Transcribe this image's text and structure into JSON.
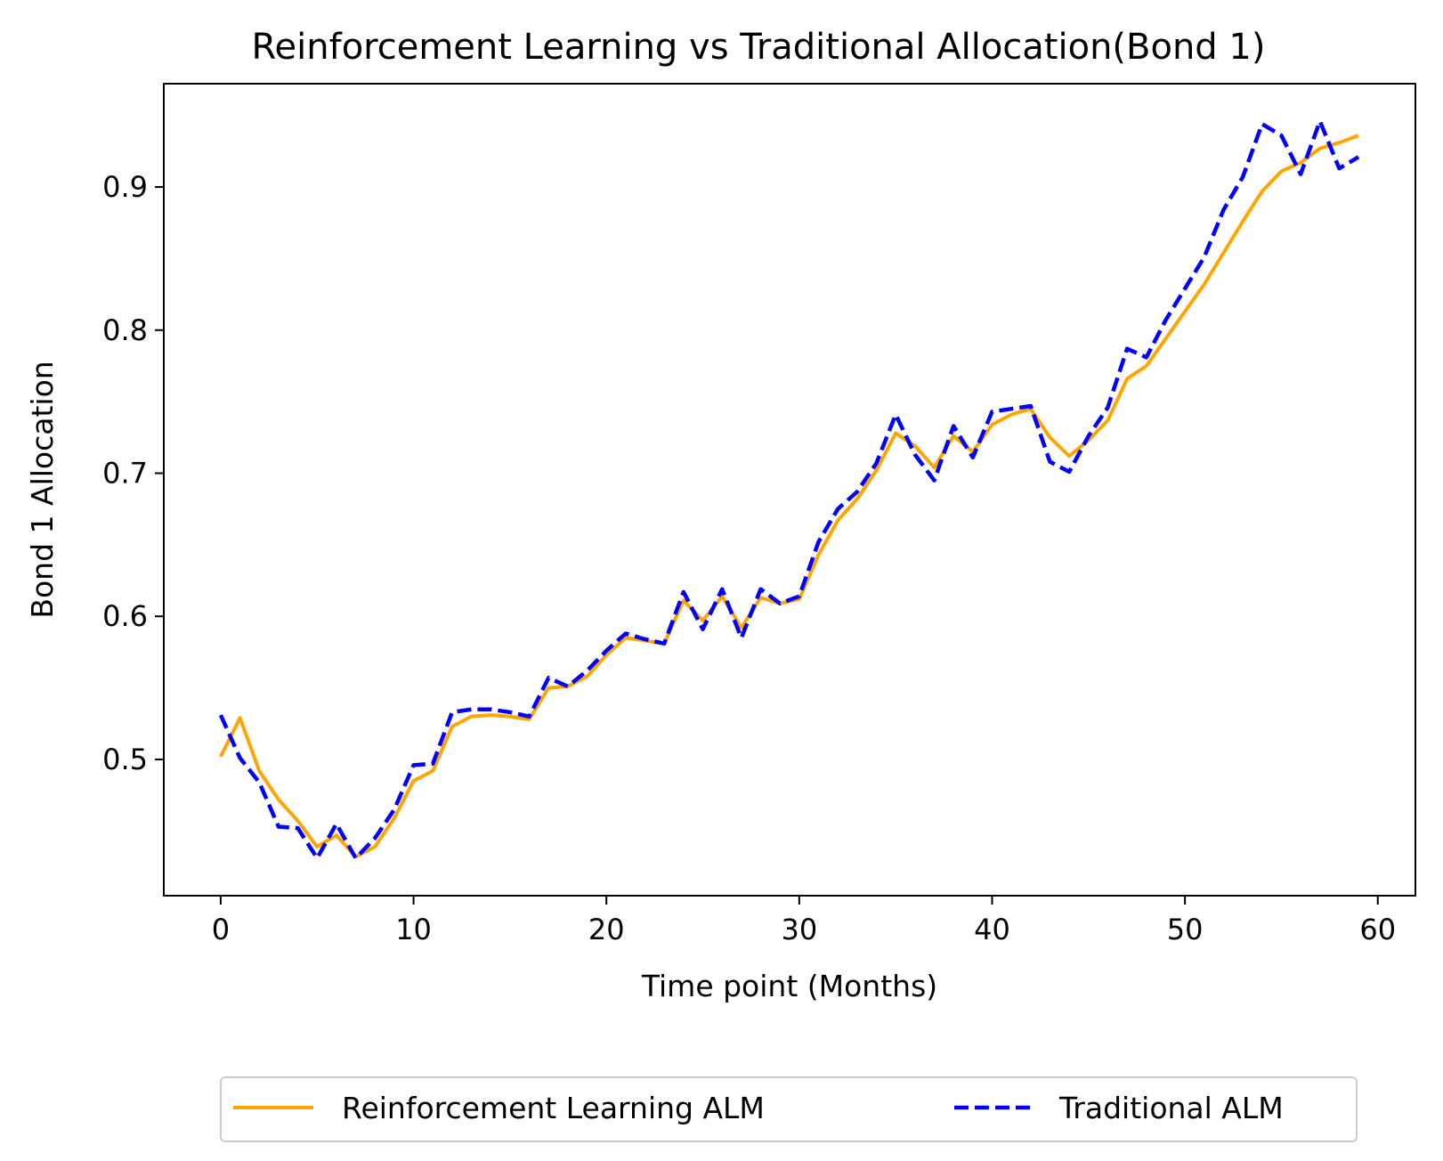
{
  "chart_data": {
    "type": "line",
    "title": "Reinforcement Learning vs Traditional Allocation(Bond 1)",
    "xlabel": "Time point (Months)",
    "ylabel": "Bond 1 Allocation",
    "xlim": [
      -2.95,
      61.95
    ],
    "ylim": [
      0.4048,
      0.9722
    ],
    "xticks": [
      0,
      10,
      20,
      30,
      40,
      50,
      60
    ],
    "xtick_labels": [
      "0",
      "10",
      "20",
      "30",
      "40",
      "50",
      "60"
    ],
    "yticks": [
      0.5,
      0.6,
      0.7,
      0.8,
      0.9
    ],
    "ytick_labels": [
      "0.5",
      "0.6",
      "0.7",
      "0.8",
      "0.9"
    ],
    "grid": false,
    "legend_position": "bottom-center",
    "x": [
      0,
      1,
      2,
      3,
      4,
      5,
      6,
      7,
      8,
      9,
      10,
      11,
      12,
      13,
      14,
      15,
      16,
      17,
      18,
      19,
      20,
      21,
      22,
      23,
      24,
      25,
      26,
      27,
      28,
      29,
      30,
      31,
      32,
      33,
      34,
      35,
      36,
      37,
      38,
      39,
      40,
      41,
      42,
      43,
      44,
      45,
      46,
      47,
      48,
      49,
      50,
      51,
      52,
      53,
      54,
      55,
      56,
      57,
      58,
      59
    ],
    "series": [
      {
        "name": "Reinforcement Learning ALM",
        "color": "#FFA500",
        "style": "solid",
        "values": [
          0.502,
          0.529,
          0.492,
          0.472,
          0.457,
          0.439,
          0.447,
          0.432,
          0.439,
          0.459,
          0.485,
          0.492,
          0.523,
          0.53,
          0.531,
          0.53,
          0.528,
          0.55,
          0.551,
          0.558,
          0.573,
          0.585,
          0.583,
          0.581,
          0.611,
          0.597,
          0.614,
          0.592,
          0.613,
          0.609,
          0.612,
          0.643,
          0.667,
          0.682,
          0.702,
          0.728,
          0.719,
          0.704,
          0.726,
          0.715,
          0.734,
          0.741,
          0.745,
          0.725,
          0.712,
          0.723,
          0.737,
          0.766,
          0.775,
          0.794,
          0.813,
          0.832,
          0.854,
          0.876,
          0.897,
          0.911,
          0.917,
          0.927,
          0.931,
          0.936
        ]
      },
      {
        "name": "Traditional ALM",
        "color": "#0000FF",
        "style": "dashed",
        "values": [
          0.531,
          0.501,
          0.484,
          0.453,
          0.452,
          0.431,
          0.455,
          0.431,
          0.445,
          0.465,
          0.496,
          0.497,
          0.533,
          0.535,
          0.535,
          0.533,
          0.53,
          0.557,
          0.551,
          0.562,
          0.576,
          0.588,
          0.584,
          0.581,
          0.617,
          0.591,
          0.619,
          0.585,
          0.619,
          0.609,
          0.614,
          0.652,
          0.675,
          0.687,
          0.707,
          0.741,
          0.713,
          0.695,
          0.733,
          0.711,
          0.743,
          0.745,
          0.747,
          0.708,
          0.701,
          0.726,
          0.746,
          0.787,
          0.781,
          0.807,
          0.829,
          0.851,
          0.884,
          0.907,
          0.944,
          0.936,
          0.909,
          0.946,
          0.913,
          0.921
        ]
      }
    ]
  }
}
